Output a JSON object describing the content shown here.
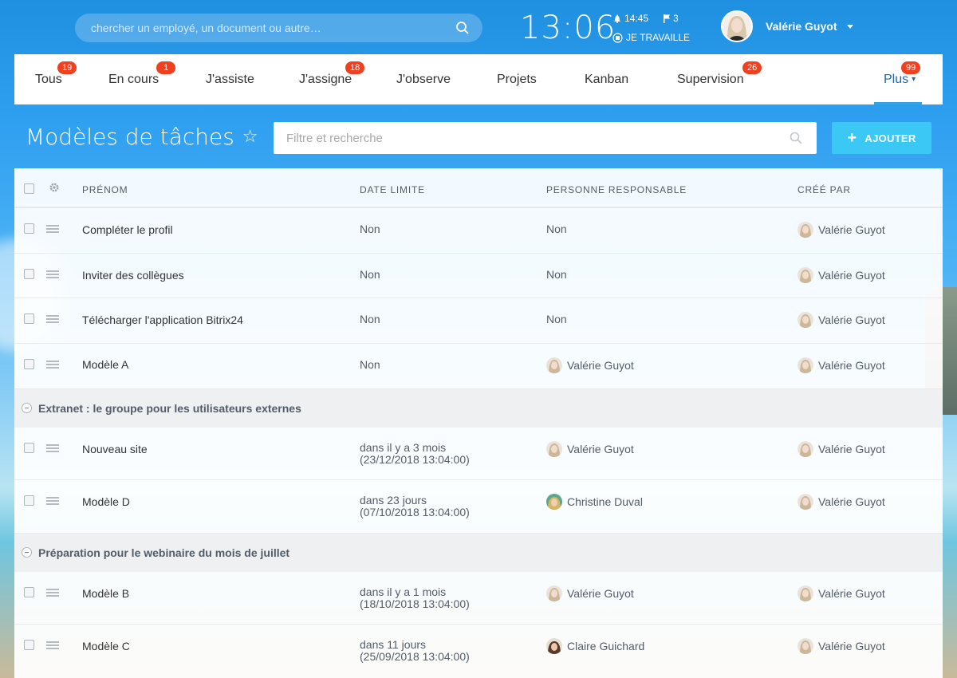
{
  "header": {
    "search_placeholder": "chercher un employé, un document ou autre…",
    "clock": "13:06",
    "alarm_time": "14:45",
    "flag_count": "3",
    "work_status": "JE TRAVAILLE",
    "user_name": "Valérie Guyot"
  },
  "tabs": [
    {
      "label": "Tous",
      "badge": "19"
    },
    {
      "label": "En cours",
      "badge": "1"
    },
    {
      "label": "J'assiste",
      "badge": ""
    },
    {
      "label": "J'assigne",
      "badge": "18"
    },
    {
      "label": "J'observe",
      "badge": ""
    },
    {
      "label": "Projets",
      "badge": ""
    },
    {
      "label": "Kanban",
      "badge": ""
    },
    {
      "label": "Supervision",
      "badge": "26"
    },
    {
      "label": "Plus",
      "badge": "99"
    }
  ],
  "page": {
    "title": "Modèles de tâches",
    "filter_placeholder": "Filtre et recherche",
    "add_label": "AJOUTER"
  },
  "table": {
    "columns": [
      "PRÉNOM",
      "DATE LIMITE",
      "PERSONNE RESPONSABLE",
      "CRÉÉ PAR"
    ],
    "rows": [
      {
        "name": "Compléter le profil",
        "deadline": "Non",
        "deadline_sub": "",
        "responsible": "Non",
        "created_by": "Valérie Guyot"
      },
      {
        "name": "Inviter des collègues",
        "deadline": "Non",
        "deadline_sub": "",
        "responsible": "Non",
        "created_by": "Valérie Guyot"
      },
      {
        "name": "Télécharger l'application Bitrix24",
        "deadline": "Non",
        "deadline_sub": "",
        "responsible": "Non",
        "created_by": "Valérie Guyot"
      },
      {
        "name": "Modèle A",
        "deadline": "Non",
        "deadline_sub": "",
        "responsible": "Valérie Guyot",
        "created_by": "Valérie Guyot"
      }
    ],
    "group1": {
      "title": "Extranet : le groupe pour les utilisateurs externes",
      "rows": [
        {
          "name": "Nouveau site",
          "deadline": "dans il y a 3 mois",
          "deadline_sub": "(23/12/2018 13:04:00)",
          "responsible": "Valérie Guyot",
          "created_by": "Valérie Guyot"
        },
        {
          "name": "Modèle D",
          "deadline": "dans 23 jours",
          "deadline_sub": "(07/10/2018 13:04:00)",
          "responsible": "Christine Duval",
          "created_by": "Valérie Guyot"
        }
      ]
    },
    "group2": {
      "title": "Préparation pour le webinaire du mois de juillet",
      "rows": [
        {
          "name": "Modèle B",
          "deadline": "dans il y a 1 mois",
          "deadline_sub": "(18/10/2018 13:04:00)",
          "responsible": "Valérie Guyot",
          "created_by": "Valérie Guyot"
        },
        {
          "name": "Modèle C",
          "deadline": "dans 11 jours",
          "deadline_sub": "(25/09/2018 13:04:00)",
          "responsible": "Claire Guichard",
          "created_by": "Valérie Guyot"
        }
      ]
    }
  },
  "icons": {
    "search": "search-icon",
    "gear": "gear-icon",
    "alarm": "bell-icon",
    "flag": "flag-icon",
    "star": "star-icon",
    "plus": "plus-icon"
  },
  "colors": {
    "header_blue": "#1f8fe0",
    "badge_red": "#f0401f",
    "add_button": "#3bc8f5",
    "active_tab": "#2067b0"
  }
}
